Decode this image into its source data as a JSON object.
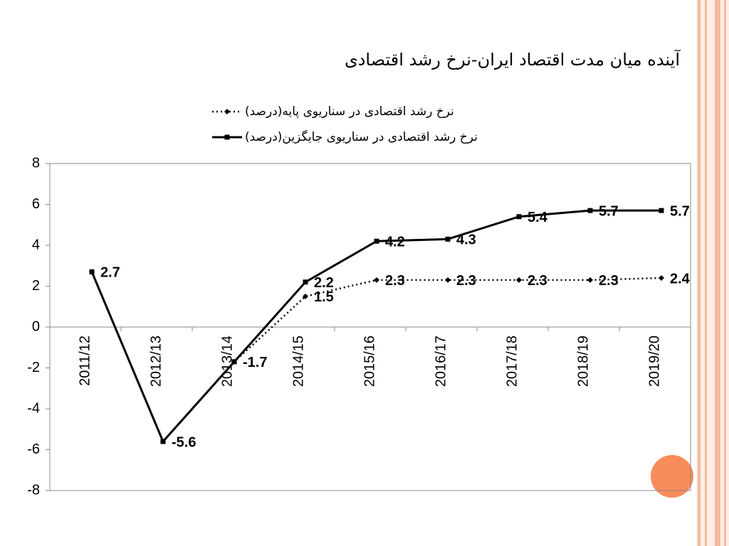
{
  "chart_data": {
    "type": "line",
    "title": "آینده میان مدت اقتصاد ایران-نرخ رشد اقتصادی",
    "categories": [
      "2011/12",
      "2012/13",
      "2013/14",
      "2014/15",
      "2015/16",
      "2016/17",
      "2017/18",
      "2018/19",
      "2019/20"
    ],
    "series": [
      {
        "name": "نرخ رشد اقتصادی در سناریوی پایه(درصد)",
        "color": "#000000",
        "style": "dotted",
        "marker": "diamond",
        "values": [
          2.7,
          -5.6,
          -1.7,
          1.5,
          2.3,
          2.3,
          2.3,
          2.3,
          2.4
        ],
        "value_labels": [
          null,
          null,
          null,
          "1.5",
          "2.3",
          "2.3",
          "2.3",
          "2.3",
          "2.4"
        ]
      },
      {
        "name": "نرخ رشد اقتصادی در سناریوی جایگزین(درصد)",
        "color": "#000000",
        "style": "solid",
        "marker": "square",
        "values": [
          2.7,
          -5.6,
          -1.7,
          2.2,
          4.2,
          4.3,
          5.4,
          5.7,
          5.7
        ],
        "value_labels": [
          "2.7",
          "-5.6",
          "-1.7",
          "2.2",
          "4.2",
          "4.3",
          "5.4",
          "5.7",
          "5.7"
        ]
      }
    ],
    "ylim": [
      -8,
      8
    ],
    "yticks": [
      -8,
      -6,
      -4,
      -2,
      0,
      2,
      4,
      6,
      8
    ],
    "grid": false
  }
}
